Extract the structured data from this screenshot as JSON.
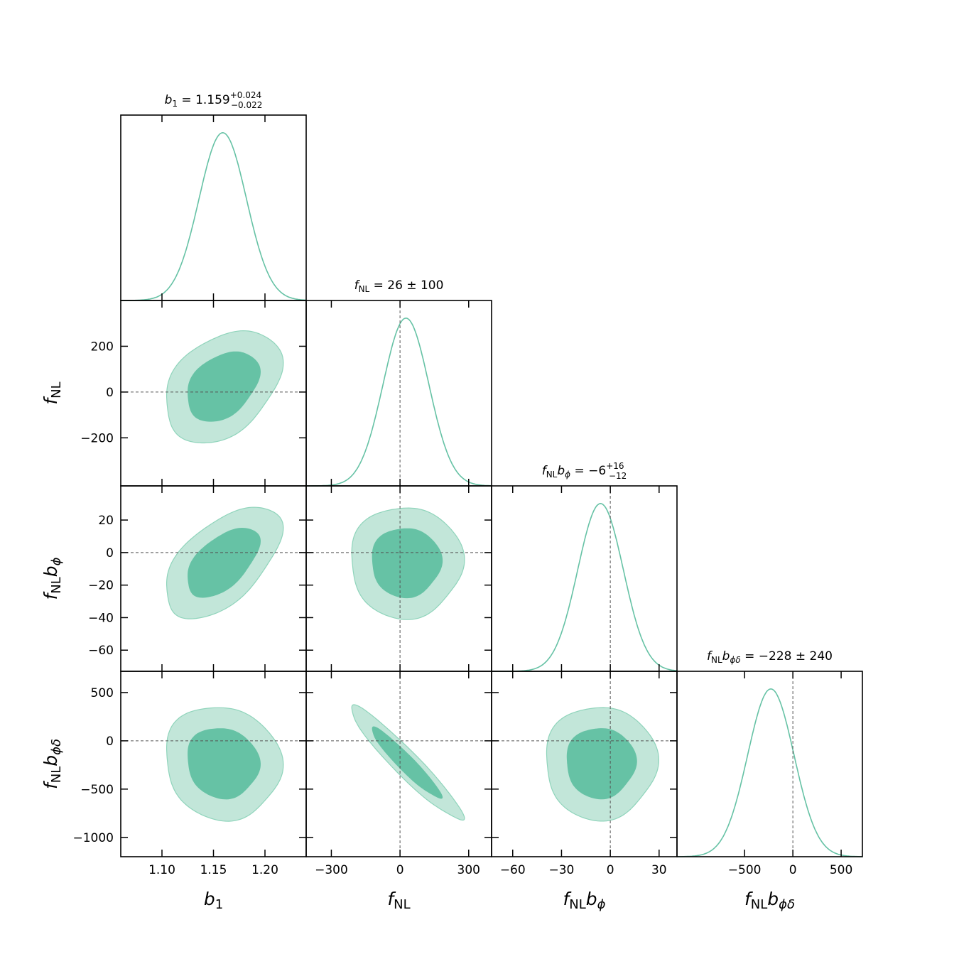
{
  "chart_data": {
    "type": "corner",
    "colors": {
      "line": "#66c2a5",
      "contour_inner": "#66c2a5",
      "contour_outer": "#c2e6d9",
      "reference": "#555555"
    },
    "parameters": [
      {
        "id": "b1",
        "label_main": "b",
        "label_sub": "1",
        "label_sub2": "",
        "xlim": [
          1.06,
          1.24
        ],
        "ticks": [
          1.1,
          1.15,
          1.2
        ],
        "tick_labels": [
          "1.10",
          "1.15",
          "1.20"
        ],
        "reference": null,
        "mean": 1.159,
        "sigma": 0.023,
        "title": {
          "main": "b",
          "sub": "1",
          "sub2": "",
          "value": " = 1.159",
          "sup": "+0.024",
          "inf": "−0.022"
        }
      },
      {
        "id": "fNL",
        "label_main": "f",
        "label_sub": "NL",
        "label_sub2": "",
        "xlim": [
          -410,
          400
        ],
        "ticks": [
          -300,
          0,
          300
        ],
        "tick_labels": [
          "−300",
          "0",
          "300"
        ],
        "reference": 0,
        "mean": 26,
        "sigma": 100,
        "title": {
          "main": "f",
          "sub": "NL",
          "sub2": "",
          "value": " = 26 ± 100",
          "sup": "",
          "inf": ""
        }
      },
      {
        "id": "fNLbphi",
        "label_main": "f",
        "label_sub": "NL",
        "label_sub2": "b",
        "label_sub3": "ϕ",
        "xlim": [
          -73,
          41
        ],
        "ticks": [
          -60,
          -30,
          0,
          30
        ],
        "tick_labels": [
          "−60",
          "−30",
          "0",
          "30"
        ],
        "reference": 0,
        "mean": -6,
        "sigma": 14,
        "title": {
          "main": "f",
          "sub": "NL",
          "sub2": "b",
          "sub3": "ϕ",
          "value": " = −6",
          "sup": "+16",
          "inf": "−12"
        }
      },
      {
        "id": "fNLbphidelta",
        "label_main": "f",
        "label_sub": "NL",
        "label_sub2": "b",
        "label_sub3": "ϕδ",
        "xlim": [
          -1200,
          720
        ],
        "ticks": [
          -500,
          0,
          500
        ],
        "tick_labels": [
          "−500",
          "0",
          "500"
        ],
        "reference": 0,
        "mean": -228,
        "sigma": 240,
        "title": {
          "main": "f",
          "sub": "NL",
          "sub2": "b",
          "sub3": "ϕδ",
          "value": " = −228 ± 240",
          "sup": "",
          "inf": ""
        }
      }
    ],
    "y_axes": {
      "fNL": {
        "ylim": [
          -410,
          400
        ],
        "ticks": [
          -200,
          0,
          200
        ],
        "tick_labels": [
          "−200",
          "0",
          "200"
        ]
      },
      "fNLbphi": {
        "ylim": [
          -73,
          41
        ],
        "ticks": [
          -60,
          -40,
          -20,
          0,
          20
        ],
        "tick_labels": [
          "−60",
          "−40",
          "−20",
          "0",
          "20"
        ]
      },
      "fNLbphidelta": {
        "ylim": [
          -1200,
          720
        ],
        "ticks": [
          -1000,
          -500,
          0,
          500
        ],
        "tick_labels": [
          "−1000",
          "−500",
          "0",
          "500"
        ]
      }
    },
    "contours_2d": [
      {
        "x": "b1",
        "y": "fNL",
        "rho": 0.35
      },
      {
        "x": "b1",
        "y": "fNLbphi",
        "rho": 0.55
      },
      {
        "x": "fNL",
        "y": "fNLbphi",
        "rho": 0.0
      },
      {
        "x": "b1",
        "y": "fNLbphidelta",
        "rho": -0.08
      },
      {
        "x": "fNL",
        "y": "fNLbphidelta",
        "rho": -0.95
      },
      {
        "x": "fNLbphi",
        "y": "fNLbphidelta",
        "rho": 0.0
      }
    ],
    "levels": [
      "68%",
      "95%"
    ]
  }
}
